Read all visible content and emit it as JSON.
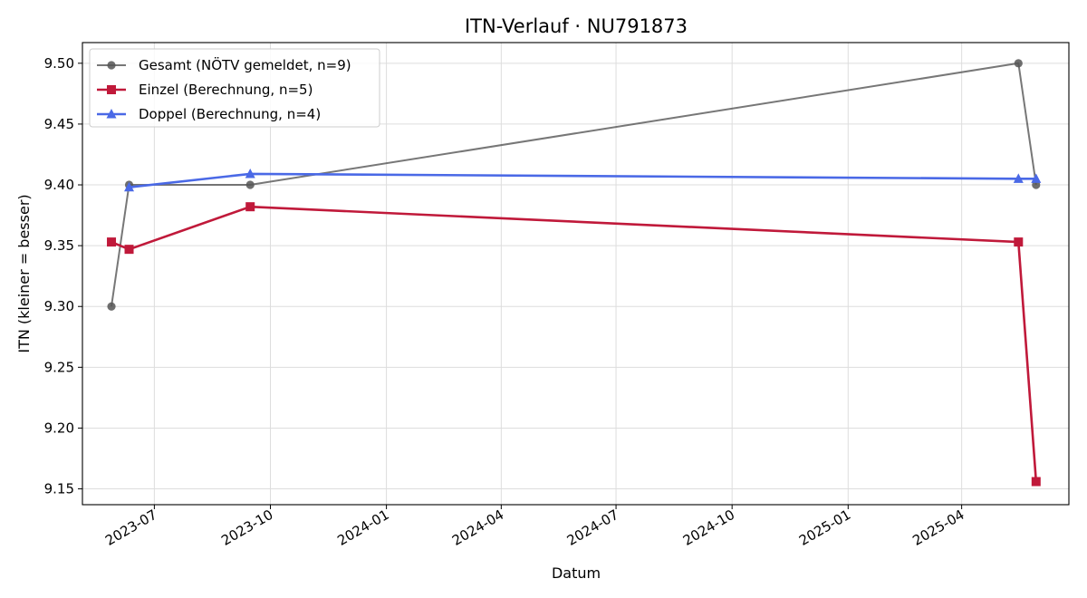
{
  "chart_data": {
    "type": "line",
    "title": "ITN-Verlauf · NU791873",
    "xlabel": "Datum",
    "ylabel": "ITN  (kleiner = besser)",
    "x_ticks": [
      "2023-07",
      "2023-10",
      "2024-01",
      "2024-04",
      "2024-07",
      "2024-10",
      "2025-01",
      "2025-04"
    ],
    "y_ticks": [
      "9.15",
      "9.20",
      "9.25",
      "9.30",
      "9.35",
      "9.40",
      "9.45",
      "9.50"
    ],
    "xlim": [
      "2023-05-05",
      "2025-06-25"
    ],
    "ylim": [
      9.137,
      9.517
    ],
    "grid": true,
    "legend_position": "upper-left",
    "series": [
      {
        "name": "Gesamt (NÖTV gemeldet, n=9)",
        "color": "#555555",
        "marker": "circle",
        "points": [
          {
            "x": "2023-05-28",
            "y": 9.3
          },
          {
            "x": "2023-06-11",
            "y": 9.4
          },
          {
            "x": "2023-09-15",
            "y": 9.4
          },
          {
            "x": "2025-05-16",
            "y": 9.5
          },
          {
            "x": "2025-05-30",
            "y": 9.4
          }
        ]
      },
      {
        "name": "Einzel (Berechnung, n=5)",
        "color": "#c0193a",
        "marker": "square",
        "points": [
          {
            "x": "2023-05-28",
            "y": 9.353
          },
          {
            "x": "2023-06-11",
            "y": 9.347
          },
          {
            "x": "2023-09-15",
            "y": 9.382
          },
          {
            "x": "2025-05-16",
            "y": 9.353
          },
          {
            "x": "2025-05-30",
            "y": 9.156
          }
        ]
      },
      {
        "name": "Doppel (Berechnung, n=4)",
        "color": "#4a69e6",
        "marker": "triangle",
        "points": [
          {
            "x": "2023-06-11",
            "y": 9.398
          },
          {
            "x": "2023-09-15",
            "y": 9.409
          },
          {
            "x": "2025-05-16",
            "y": 9.405
          },
          {
            "x": "2025-05-30",
            "y": 9.405
          }
        ]
      }
    ]
  }
}
